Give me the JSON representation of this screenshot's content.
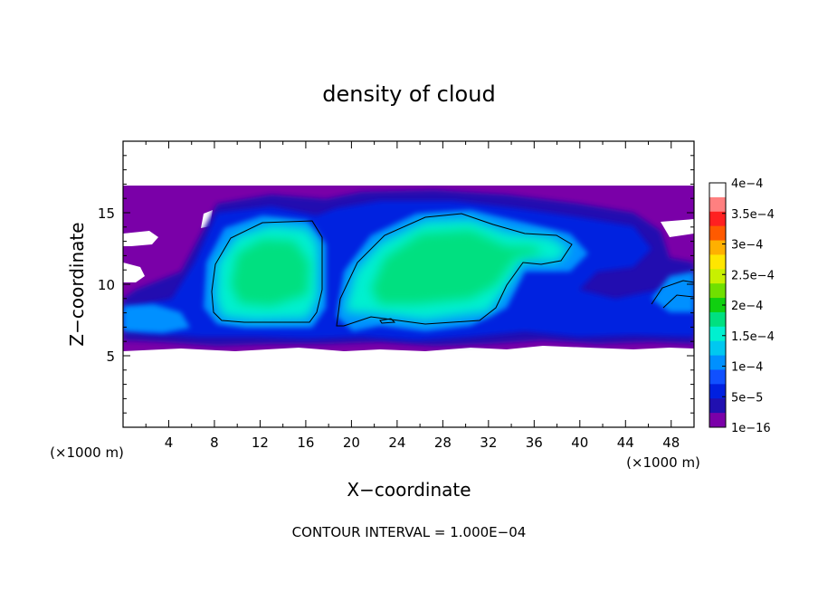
{
  "chart_data": {
    "type": "heatmap",
    "title": "density of cloud",
    "xlabel": "X−coordinate",
    "ylabel": "Z−coordinate",
    "x_unit_left": "(×1000 m)",
    "x_unit_right": "(×1000 m)",
    "xlim": [
      0,
      50
    ],
    "ylim": [
      0,
      20
    ],
    "xticks": [
      4,
      8,
      12,
      16,
      20,
      24,
      28,
      32,
      36,
      40,
      44,
      48
    ],
    "yticks": [
      5,
      10,
      15
    ],
    "footer": "CONTOUR INTERVAL = 1.000E−04",
    "colorbar": {
      "labels": [
        "4e−4",
        "3.5e−4",
        "3e−4",
        "2.5e−4",
        "2e−4",
        "1.5e−4",
        "1e−4",
        "5e−5",
        "1e−16"
      ],
      "colors": [
        "#ffffff",
        "#ff8080",
        "#ff2020",
        "#ff5a00",
        "#ffb000",
        "#ffe600",
        "#c8f000",
        "#70e000",
        "#10d010",
        "#00e080",
        "#00f0d0",
        "#00c8f0",
        "#0090ff",
        "#1050ff",
        "#0020e0",
        "#2010b0",
        "#7a00a8"
      ]
    },
    "regions": [
      {
        "name": "cloud-envelope",
        "level": 1e-16
      },
      {
        "name": "main-left-core",
        "level": 0.00015
      },
      {
        "name": "main-right-core",
        "level": 0.00015
      }
    ],
    "contour_lines": [
      0.0001
    ]
  }
}
